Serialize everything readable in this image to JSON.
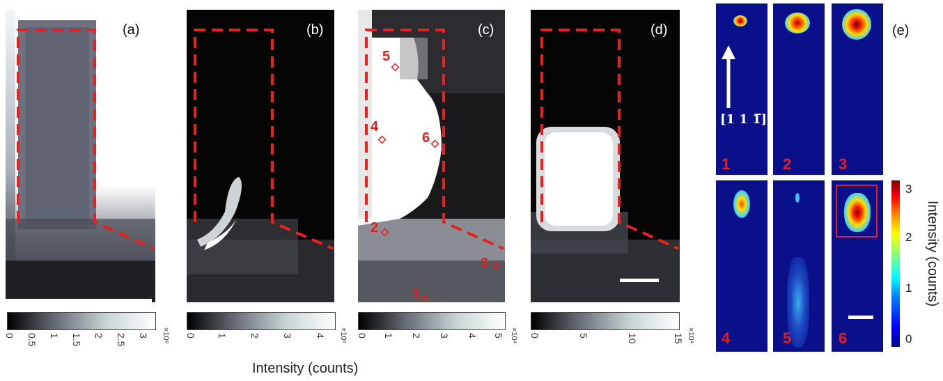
{
  "panels": {
    "a": {
      "label": "(a)"
    },
    "b": {
      "label": "(b)"
    },
    "c": {
      "label": "(c)",
      "points": [
        "5",
        "4",
        "6",
        "2",
        "3",
        "1"
      ]
    },
    "d": {
      "label": "(d)"
    },
    "e": {
      "label": "(e)"
    }
  },
  "colorbars": {
    "a": {
      "ticks": [
        "0",
        "0.5",
        "1",
        "1.5",
        "2",
        "2.5",
        "3"
      ],
      "exponent": "×10⁸"
    },
    "b": {
      "ticks": [
        "0",
        "1",
        "2",
        "3",
        "4"
      ],
      "exponent": "×10⁶"
    },
    "c": {
      "ticks": [
        "0",
        "1",
        "2",
        "3",
        "4",
        "5"
      ],
      "exponent": "×10⁴"
    },
    "d": {
      "ticks": [
        "0",
        "5",
        "10",
        "15"
      ],
      "exponent": "×10⁴"
    }
  },
  "x_axis_label": "Intensity (counts)",
  "direction_label": "[1 1 1̅]",
  "thumbnails": [
    "1",
    "2",
    "3",
    "4",
    "5",
    "6"
  ],
  "jet_colorbar": {
    "ticks": [
      "3",
      "2",
      "1",
      "0"
    ],
    "label": "Intensity (counts)"
  },
  "colors": {
    "dashed_outline": "#e82020",
    "marker": "#e82020",
    "thumb_bg": "#0a0f8a"
  }
}
